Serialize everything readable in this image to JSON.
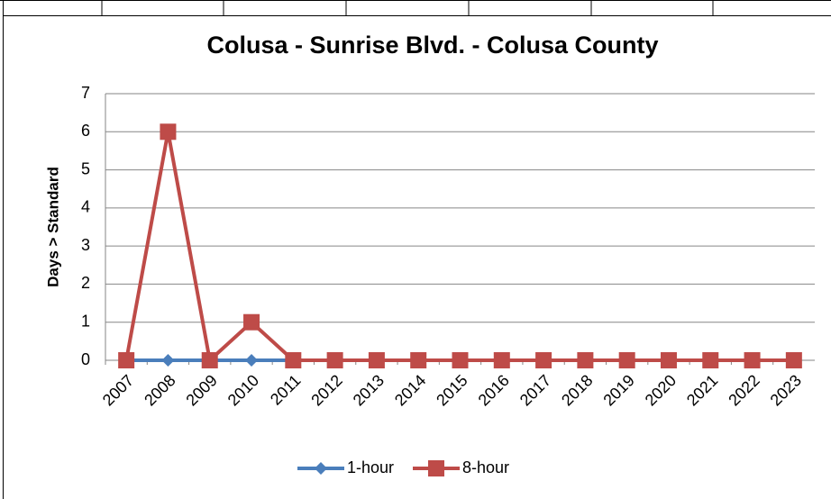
{
  "chart_data": {
    "type": "line",
    "title": "Colusa - Sunrise Blvd. - Colusa County",
    "ylabel": "Days > Standard",
    "categories": [
      "2007",
      "2008",
      "2009",
      "2010",
      "2011",
      "2012",
      "2013",
      "2014",
      "2015",
      "2016",
      "2017",
      "2018",
      "2019",
      "2020",
      "2021",
      "2022",
      "2023"
    ],
    "series": [
      {
        "name": "1-hour",
        "color": "#4a7ebb",
        "marker": "diamond",
        "values": [
          0,
          0,
          0,
          0,
          0,
          0,
          0,
          0,
          0,
          0,
          0,
          0,
          0,
          0,
          0,
          0,
          0
        ]
      },
      {
        "name": "8-hour",
        "color": "#be4b48",
        "marker": "square",
        "values": [
          0,
          6,
          0,
          1,
          0,
          0,
          0,
          0,
          0,
          0,
          0,
          0,
          0,
          0,
          0,
          0,
          0
        ]
      }
    ],
    "ylim": [
      0,
      7
    ],
    "yticks": [
      0,
      1,
      2,
      3,
      4,
      5,
      6,
      7
    ],
    "grid": true,
    "legend": "bottom"
  }
}
